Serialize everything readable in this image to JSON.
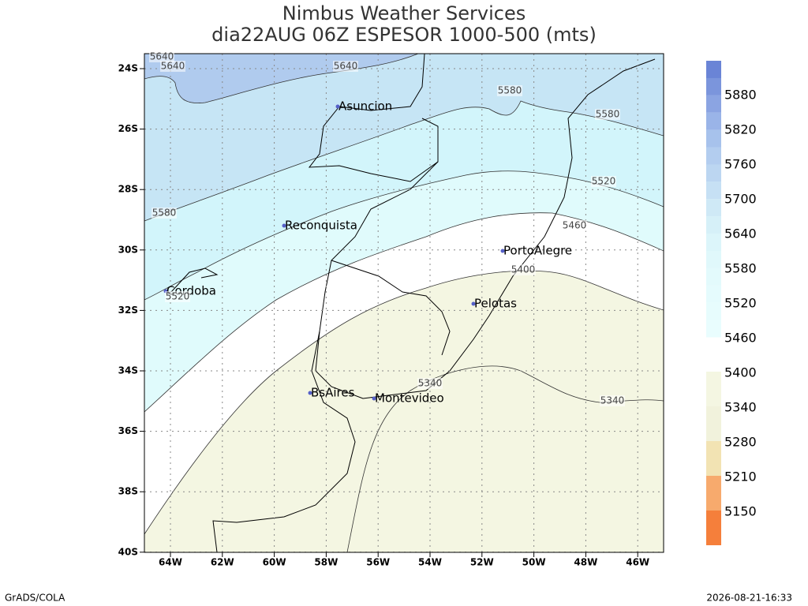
{
  "title": [
    "Nimbus Weather Services",
    "dia22AUG 06Z ESPESOR 1000-500 (mts)"
  ],
  "lat_labels": [
    "24S",
    "26S",
    "28S",
    "30S",
    "32S",
    "34S",
    "36S",
    "38S",
    "40S"
  ],
  "lon_labels": [
    "64W",
    "62W",
    "60W",
    "58W",
    "56W",
    "54W",
    "52W",
    "50W",
    "48W",
    "46W"
  ],
  "cities": [
    "Asuncion",
    "Reconquista",
    "PortoAlegre",
    "Cordoba",
    "Pelotas",
    "BsAires",
    "Montevideo"
  ],
  "contour_labels": [
    "5640",
    "5640",
    "5640",
    "5580",
    "5580",
    "5580",
    "5520",
    "5520",
    "5460",
    "5400",
    "5340",
    "5340"
  ],
  "colorbar_labels": [
    "5880",
    "5820",
    "5760",
    "5700",
    "5640",
    "5580",
    "5520",
    "5460",
    "5400",
    "5340",
    "5280",
    "5210",
    "5150"
  ],
  "footer": {
    "left": "GrADS/COLA",
    "right": "2026-08-21-16:33"
  }
}
